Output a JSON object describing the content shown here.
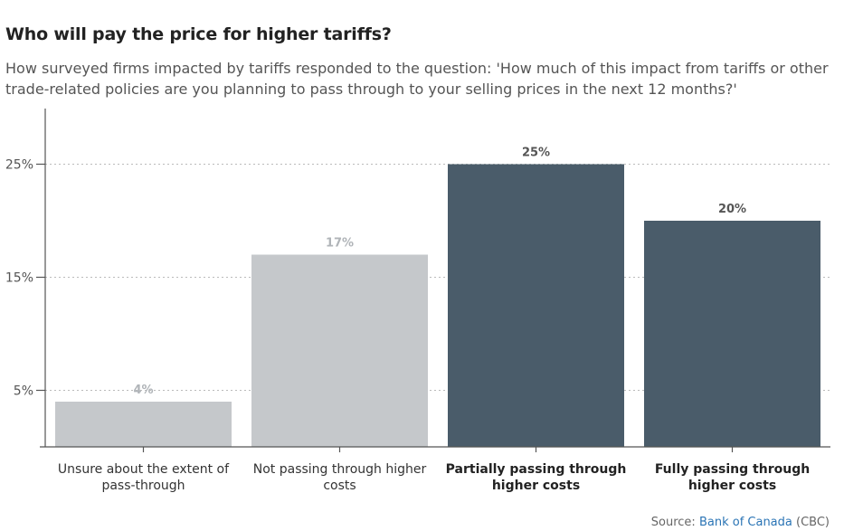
{
  "title": "Who will pay the price for higher tariffs?",
  "subtitle": "How surveyed firms impacted by tariffs responded to the question: 'How much of this impact from tariffs or other trade-related policies are you planning to pass through to your selling prices in the next 12 months?'",
  "source": {
    "prefix": "Source: ",
    "link": "Bank of Canada",
    "suffix": " (CBC)"
  },
  "colors": {
    "light_bar": "#c5c8cb",
    "dark_bar": "#4a5c6a",
    "light_label": "#b0b4b8",
    "dark_label": "#555555"
  },
  "chart_data": {
    "type": "bar",
    "title": "Who will pay the price for higher tariffs?",
    "xlabel": "",
    "ylabel": "",
    "categories": [
      [
        "Unsure about the extent of",
        "pass-through"
      ],
      [
        "Not passing through higher",
        "costs"
      ],
      [
        "Partially passing through",
        "higher costs"
      ],
      [
        "Fully passing through",
        "higher costs"
      ]
    ],
    "values": [
      4,
      17,
      25,
      20
    ],
    "value_labels": [
      "4%",
      "17%",
      "25%",
      "20%"
    ],
    "highlighted": [
      false,
      false,
      true,
      true
    ],
    "yticks": [
      5,
      15,
      25
    ],
    "ytick_labels": [
      "5%",
      "15%",
      "25%"
    ],
    "ylim": [
      0,
      30
    ],
    "grid": true
  }
}
